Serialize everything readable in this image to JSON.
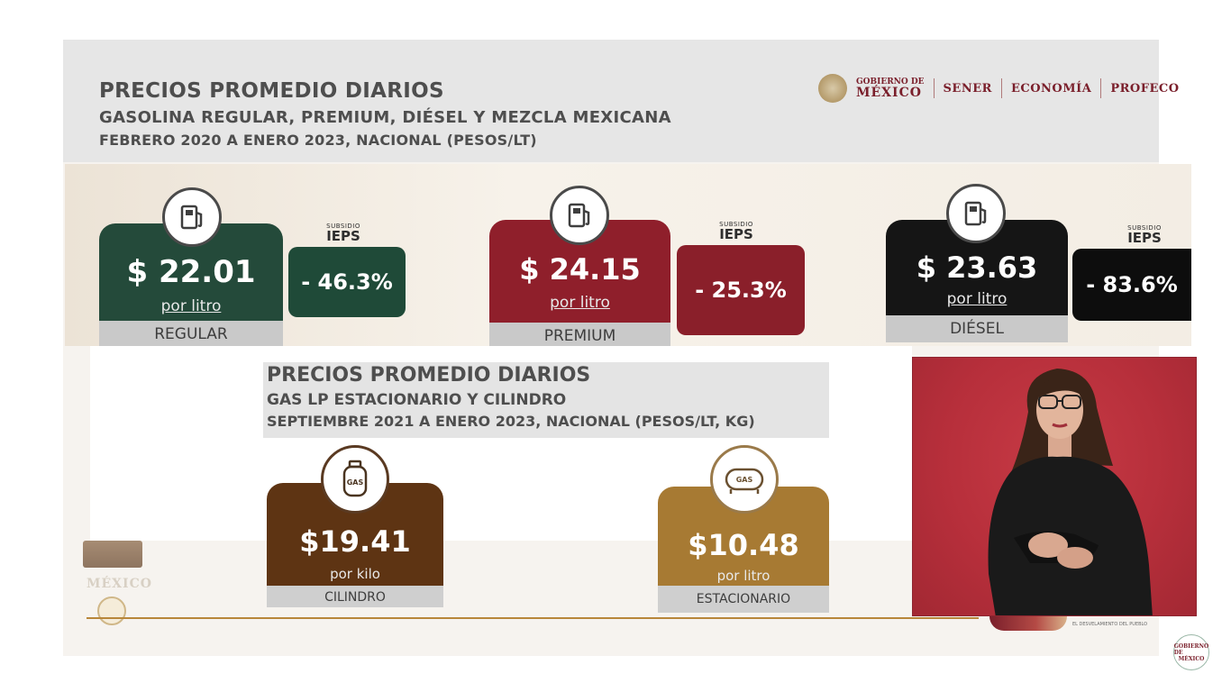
{
  "header": {
    "title": "PRECIOS PROMEDIO DIARIOS",
    "subtitle": "GASOLINA REGULAR, PREMIUM, DIÉSEL Y MEZCLA MEXICANA",
    "period": "FEBRERO 2020 A ENERO 2023, NACIONAL (PESOS/LT)"
  },
  "logos": {
    "gobierno_small": "GOBIERNO DE",
    "gobierno_big": "MÉXICO",
    "sener": "SENER",
    "economia": "ECONOMÍA",
    "profeco": "PROFECO"
  },
  "fuels": [
    {
      "price": "$ 22.01",
      "unit": "por litro",
      "label": "REGULAR",
      "subsidy_small": "SUBSIDIO",
      "subsidy_big": "IEPS",
      "subsidy_value": "- 46.3%",
      "color": "#244a3a",
      "subsidy_color": "#1f4a38",
      "icon": "fuel-pump-icon"
    },
    {
      "price": "$ 24.15",
      "unit": "por litro",
      "label": "PREMIUM",
      "subsidy_small": "SUBSIDIO",
      "subsidy_big": "IEPS",
      "subsidy_value": "- 25.3%",
      "color": "#8f1f2b",
      "subsidy_color": "#8a1f2a",
      "icon": "fuel-pump-icon"
    },
    {
      "price": "$ 23.63",
      "unit": "por litro",
      "label": "DIÉSEL",
      "subsidy_small": "SUBSIDIO",
      "subsidy_big": "IEPS",
      "subsidy_value": "- 83.6%",
      "color": "#151515",
      "subsidy_color": "#0d0d0d",
      "icon": "fuel-pump-icon"
    }
  ],
  "gas_header": {
    "title": "PRECIOS PROMEDIO DIARIOS",
    "subtitle": "GAS LP ESTACIONARIO Y CILINDRO",
    "period": "SEPTIEMBRE 2021 A ENERO 2023, NACIONAL (PESOS/LT, KG)"
  },
  "gas": [
    {
      "price": "$19.41",
      "unit": "por kilo",
      "label": "CILINDRO",
      "icon_text": "GAS",
      "color": "#5e3413",
      "icon": "gas-cylinder-icon"
    },
    {
      "price": "$10.48",
      "unit": "por litro",
      "label": "ESTACIONARIO",
      "icon_text": "GAS",
      "color": "#a77a33",
      "icon": "gas-tank-icon"
    }
  ],
  "footer": {
    "mexico_text": "MÉXICO",
    "tagline": "EL DESVELAMIENTO DEL PUEBLO",
    "badge_line1": "GOBIERNO DE",
    "badge_line2": "MÉXICO"
  }
}
